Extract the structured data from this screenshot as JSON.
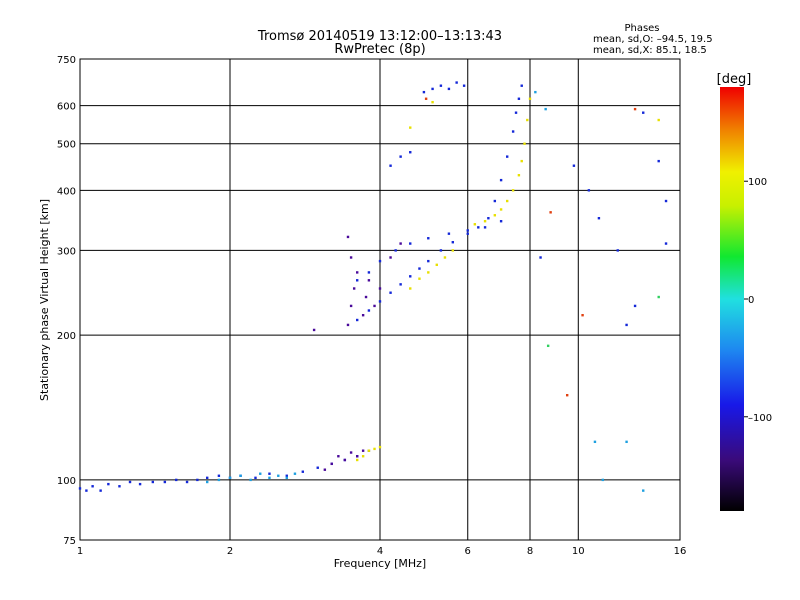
{
  "chart_data": {
    "type": "scatter",
    "title": "Tromsø 20140519 13:12:00–13:13:43",
    "subtitle": "RwPretec (8p)",
    "stats": {
      "title": "Phases",
      "line1": "mean, sd,O: –94.5, 19.5",
      "line2": "mean, sd,X: 85.1, 18.5"
    },
    "xlabel": "Frequency [MHz]",
    "ylabel": "Stationary phase Virtual Height [km]",
    "x_scale": "log",
    "y_scale": "log",
    "xlim": [
      1,
      16
    ],
    "ylim": [
      75,
      750
    ],
    "x_ticks": [
      1,
      2,
      4,
      6,
      8,
      10,
      16
    ],
    "x_tick_labels": [
      "1",
      "2",
      "4",
      "6",
      "8",
      "10",
      "16"
    ],
    "y_ticks": [
      75,
      100,
      200,
      300,
      400,
      500,
      600,
      750
    ],
    "y_tick_labels": [
      "75",
      "100",
      "200",
      "300",
      "400",
      "500",
      "600",
      "750"
    ],
    "grid": true,
    "colorbar": {
      "label": "[deg]",
      "range": [
        -180,
        180
      ],
      "ticks": [
        100,
        0,
        -100
      ],
      "tick_labels": [
        "100",
        "0",
        "–100"
      ]
    },
    "series": [
      {
        "color": "#1428d8",
        "points": [
          [
            1.0,
            96
          ],
          [
            1.03,
            95
          ],
          [
            1.06,
            97
          ],
          [
            1.1,
            95
          ],
          [
            1.14,
            98
          ],
          [
            1.2,
            97
          ],
          [
            1.26,
            99
          ],
          [
            1.32,
            98
          ],
          [
            1.4,
            99
          ],
          [
            1.48,
            99
          ],
          [
            1.56,
            100
          ],
          [
            1.64,
            99
          ],
          [
            1.72,
            100
          ],
          [
            1.8,
            101
          ],
          [
            1.9,
            102
          ],
          [
            2.0,
            101
          ],
          [
            2.1,
            102
          ],
          [
            2.25,
            101
          ],
          [
            2.4,
            103
          ],
          [
            2.6,
            102
          ],
          [
            2.8,
            104
          ],
          [
            3.0,
            106
          ],
          [
            3.2,
            108
          ],
          [
            3.4,
            110
          ],
          [
            3.6,
            112
          ],
          [
            3.8,
            115
          ],
          [
            3.6,
            215
          ],
          [
            3.8,
            225
          ],
          [
            4.0,
            235
          ],
          [
            4.2,
            245
          ],
          [
            4.4,
            255
          ],
          [
            4.6,
            265
          ],
          [
            4.8,
            275
          ],
          [
            5.0,
            285
          ],
          [
            5.3,
            300
          ],
          [
            5.6,
            312
          ],
          [
            6.0,
            325
          ],
          [
            6.3,
            335
          ],
          [
            6.6,
            350
          ],
          [
            6.8,
            380
          ],
          [
            7.0,
            420
          ],
          [
            7.2,
            470
          ],
          [
            7.4,
            530
          ],
          [
            7.5,
            580
          ],
          [
            7.6,
            620
          ],
          [
            7.7,
            660
          ],
          [
            3.6,
            260
          ],
          [
            3.8,
            270
          ],
          [
            4.0,
            285
          ],
          [
            4.3,
            300
          ],
          [
            4.6,
            310
          ],
          [
            5.0,
            318
          ],
          [
            5.5,
            325
          ],
          [
            6.0,
            330
          ],
          [
            6.5,
            335
          ],
          [
            7.0,
            345
          ],
          [
            4.9,
            640
          ],
          [
            5.1,
            650
          ],
          [
            5.3,
            660
          ],
          [
            5.5,
            650
          ],
          [
            5.7,
            670
          ],
          [
            5.9,
            660
          ],
          [
            4.2,
            450
          ],
          [
            4.4,
            470
          ],
          [
            4.6,
            480
          ],
          [
            8.4,
            290
          ],
          [
            9.8,
            450
          ],
          [
            10.5,
            400
          ],
          [
            11.0,
            350
          ],
          [
            12.0,
            300
          ],
          [
            13.5,
            580
          ],
          [
            14.5,
            460
          ],
          [
            15.0,
            310
          ],
          [
            15.0,
            380
          ],
          [
            12.5,
            210
          ],
          [
            13.0,
            230
          ]
        ]
      },
      {
        "color": "#4a0a9a",
        "points": [
          [
            3.1,
            105
          ],
          [
            3.2,
            108
          ],
          [
            3.3,
            112
          ],
          [
            3.4,
            110
          ],
          [
            3.5,
            114
          ],
          [
            3.6,
            112
          ],
          [
            3.7,
            115
          ],
          [
            3.45,
            210
          ],
          [
            3.5,
            230
          ],
          [
            3.55,
            250
          ],
          [
            3.6,
            270
          ],
          [
            3.7,
            220
          ],
          [
            3.75,
            240
          ],
          [
            3.8,
            260
          ],
          [
            3.9,
            230
          ],
          [
            4.0,
            250
          ],
          [
            3.45,
            320
          ],
          [
            3.5,
            290
          ],
          [
            4.2,
            290
          ],
          [
            4.4,
            310
          ],
          [
            2.95,
            205
          ]
        ]
      },
      {
        "color": "#1ea0e0",
        "points": [
          [
            1.8,
            99
          ],
          [
            1.9,
            100
          ],
          [
            2.0,
            101
          ],
          [
            2.1,
            102
          ],
          [
            2.2,
            100
          ],
          [
            2.3,
            103
          ],
          [
            2.4,
            101
          ],
          [
            2.5,
            102
          ],
          [
            2.6,
            101
          ],
          [
            2.7,
            103
          ],
          [
            8.2,
            640
          ],
          [
            8.6,
            590
          ],
          [
            10.8,
            120
          ],
          [
            12.5,
            120
          ],
          [
            13.5,
            95
          ],
          [
            11.2,
            100
          ]
        ]
      },
      {
        "color": "#e8e000",
        "points": [
          [
            3.6,
            110
          ],
          [
            3.7,
            112
          ],
          [
            3.8,
            115
          ],
          [
            3.9,
            116
          ],
          [
            4.0,
            117
          ],
          [
            4.6,
            250
          ],
          [
            4.8,
            262
          ],
          [
            5.0,
            270
          ],
          [
            5.2,
            280
          ],
          [
            5.4,
            290
          ],
          [
            5.6,
            300
          ],
          [
            6.2,
            340
          ],
          [
            6.5,
            345
          ],
          [
            6.8,
            355
          ],
          [
            7.0,
            365
          ],
          [
            7.2,
            380
          ],
          [
            7.4,
            400
          ],
          [
            7.6,
            430
          ],
          [
            7.7,
            460
          ],
          [
            7.8,
            500
          ],
          [
            7.9,
            560
          ],
          [
            8.0,
            620
          ],
          [
            4.6,
            540
          ],
          [
            5.1,
            610
          ],
          [
            14.5,
            560
          ]
        ]
      },
      {
        "color": "#e04010",
        "points": [
          [
            4.95,
            620
          ],
          [
            8.8,
            360
          ],
          [
            9.5,
            150
          ],
          [
            10.2,
            220
          ],
          [
            13.0,
            590
          ]
        ]
      },
      {
        "color": "#30d060",
        "points": [
          [
            8.7,
            190
          ],
          [
            14.5,
            240
          ]
        ]
      }
    ]
  }
}
